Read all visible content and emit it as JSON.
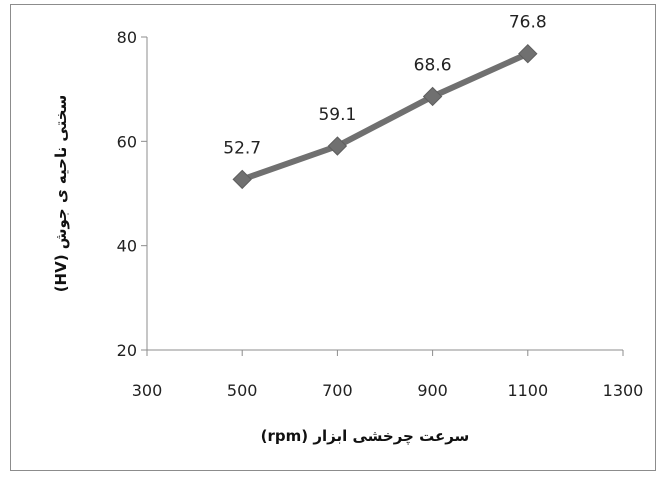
{
  "chart_data": {
    "type": "line",
    "title": "",
    "xlabel": "سرعت چرخشی ابزار (rpm)",
    "ylabel": "سختی ناحیه ی جوش (HV)",
    "xlim": [
      300,
      1300
    ],
    "ylim": [
      20,
      80
    ],
    "xticks": [
      300,
      500,
      700,
      900,
      1100,
      1300
    ],
    "yticks": [
      20,
      40,
      60,
      80
    ],
    "grid": false,
    "legend": "none",
    "series": [
      {
        "x": [
          500,
          700,
          900,
          1100
        ],
        "values": [
          52.7,
          59.1,
          68.6,
          76.8
        ],
        "labels": [
          "52.7",
          "59.1",
          "68.6",
          "76.8"
        ],
        "color": "#707070",
        "marker": "diamond"
      }
    ]
  }
}
